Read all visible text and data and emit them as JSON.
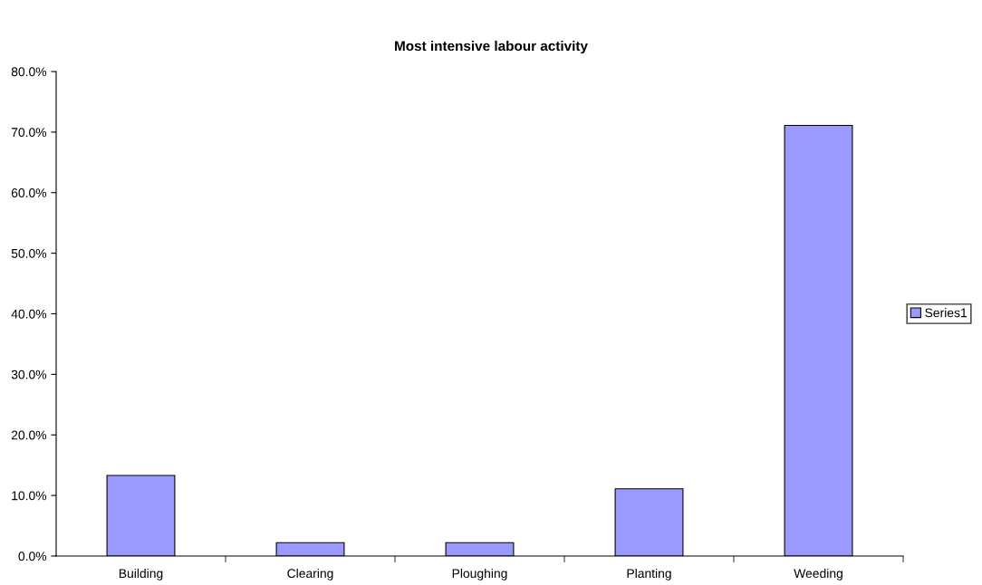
{
  "chart_data": {
    "type": "bar",
    "title": "Most intensive labour activity",
    "categories": [
      "Building",
      "Clearing",
      "Ploughing",
      "Planting",
      "Weeding"
    ],
    "series": [
      {
        "name": "Series1",
        "color": "#9999ff",
        "values": [
          13.3,
          2.2,
          2.2,
          11.1,
          71.1
        ]
      }
    ],
    "ylim": [
      0,
      80
    ],
    "yticks": [
      {
        "value": 0,
        "label": "0.0%"
      },
      {
        "value": 10,
        "label": "10.0%"
      },
      {
        "value": 20,
        "label": "20.0%"
      },
      {
        "value": 30,
        "label": "30.0%"
      },
      {
        "value": 40,
        "label": "40.0%"
      },
      {
        "value": 50,
        "label": "50.0%"
      },
      {
        "value": 60,
        "label": "60.0%"
      },
      {
        "value": 70,
        "label": "70.0%"
      },
      {
        "value": 80,
        "label": "80.0%"
      }
    ],
    "grid": false,
    "legend": "right"
  }
}
